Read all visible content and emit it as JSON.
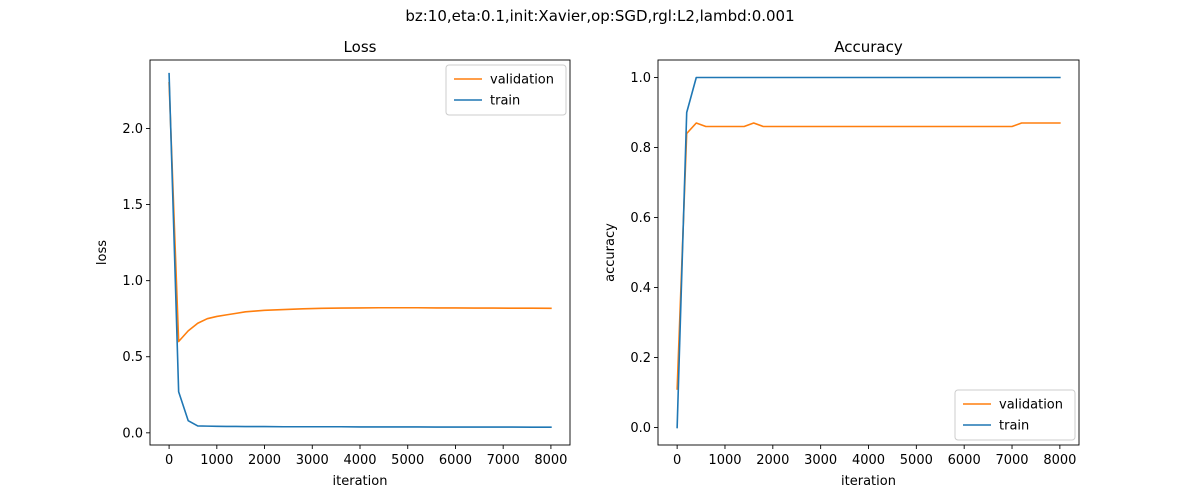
{
  "suptitle": "bz:10,eta:0.1,init:Xavier,op:SGD,rgl:L2,lambd:0.001",
  "colors": {
    "validation": "#ff7f0e",
    "train": "#1f77b4"
  },
  "chart_data": [
    {
      "type": "line",
      "title": "Loss",
      "xlabel": "iteration",
      "ylabel": "loss",
      "xlim": [
        -400,
        8400
      ],
      "ylim": [
        -0.08,
        2.45
      ],
      "xticks": [
        0,
        1000,
        2000,
        3000,
        4000,
        5000,
        6000,
        7000,
        8000
      ],
      "yticks": [
        0.0,
        0.5,
        1.0,
        1.5,
        2.0
      ],
      "ytick_labels": [
        "0.0",
        "0.5",
        "1.0",
        "1.5",
        "2.0"
      ],
      "grid": false,
      "legend_position": "top-right",
      "x": [
        0,
        200,
        400,
        600,
        800,
        1000,
        1200,
        1400,
        1600,
        1800,
        2000,
        2400,
        2800,
        3200,
        3600,
        4000,
        4400,
        4800,
        5200,
        5600,
        6000,
        6400,
        6800,
        7200,
        7600,
        8000
      ],
      "series": [
        {
          "name": "validation",
          "color": "#ff7f0e",
          "values": [
            2.3,
            0.6,
            0.67,
            0.72,
            0.75,
            0.765,
            0.775,
            0.785,
            0.795,
            0.8,
            0.805,
            0.81,
            0.815,
            0.818,
            0.82,
            0.821,
            0.822,
            0.822,
            0.822,
            0.821,
            0.821,
            0.82,
            0.82,
            0.819,
            0.819,
            0.818
          ]
        },
        {
          "name": "train",
          "color": "#1f77b4",
          "values": [
            2.36,
            0.27,
            0.08,
            0.045,
            0.044,
            0.043,
            0.042,
            0.042,
            0.041,
            0.041,
            0.041,
            0.04,
            0.04,
            0.04,
            0.04,
            0.039,
            0.039,
            0.039,
            0.039,
            0.038,
            0.038,
            0.038,
            0.038,
            0.038,
            0.037,
            0.037
          ]
        }
      ]
    },
    {
      "type": "line",
      "title": "Accuracy",
      "xlabel": "iteration",
      "ylabel": "accuracy",
      "xlim": [
        -400,
        8400
      ],
      "ylim": [
        -0.05,
        1.05
      ],
      "xticks": [
        0,
        1000,
        2000,
        3000,
        4000,
        5000,
        6000,
        7000,
        8000
      ],
      "yticks": [
        0.0,
        0.2,
        0.4,
        0.6,
        0.8,
        1.0
      ],
      "ytick_labels": [
        "0.0",
        "0.2",
        "0.4",
        "0.6",
        "0.8",
        "1.0"
      ],
      "grid": false,
      "legend_position": "bottom-right",
      "x": [
        0,
        200,
        400,
        600,
        800,
        1000,
        1200,
        1400,
        1600,
        1800,
        2000,
        2400,
        2800,
        3200,
        3600,
        4000,
        4400,
        4800,
        5200,
        5600,
        6000,
        6400,
        6800,
        7000,
        7200,
        7600,
        8000
      ],
      "series": [
        {
          "name": "validation",
          "color": "#ff7f0e",
          "values": [
            0.11,
            0.84,
            0.87,
            0.86,
            0.86,
            0.86,
            0.86,
            0.86,
            0.87,
            0.86,
            0.86,
            0.86,
            0.86,
            0.86,
            0.86,
            0.86,
            0.86,
            0.86,
            0.86,
            0.86,
            0.86,
            0.86,
            0.86,
            0.86,
            0.87,
            0.87,
            0.87
          ]
        },
        {
          "name": "train",
          "color": "#1f77b4",
          "values": [
            0.0,
            0.9,
            1.0,
            1.0,
            1.0,
            1.0,
            1.0,
            1.0,
            1.0,
            1.0,
            1.0,
            1.0,
            1.0,
            1.0,
            1.0,
            1.0,
            1.0,
            1.0,
            1.0,
            1.0,
            1.0,
            1.0,
            1.0,
            1.0,
            1.0,
            1.0,
            1.0
          ]
        }
      ]
    }
  ]
}
